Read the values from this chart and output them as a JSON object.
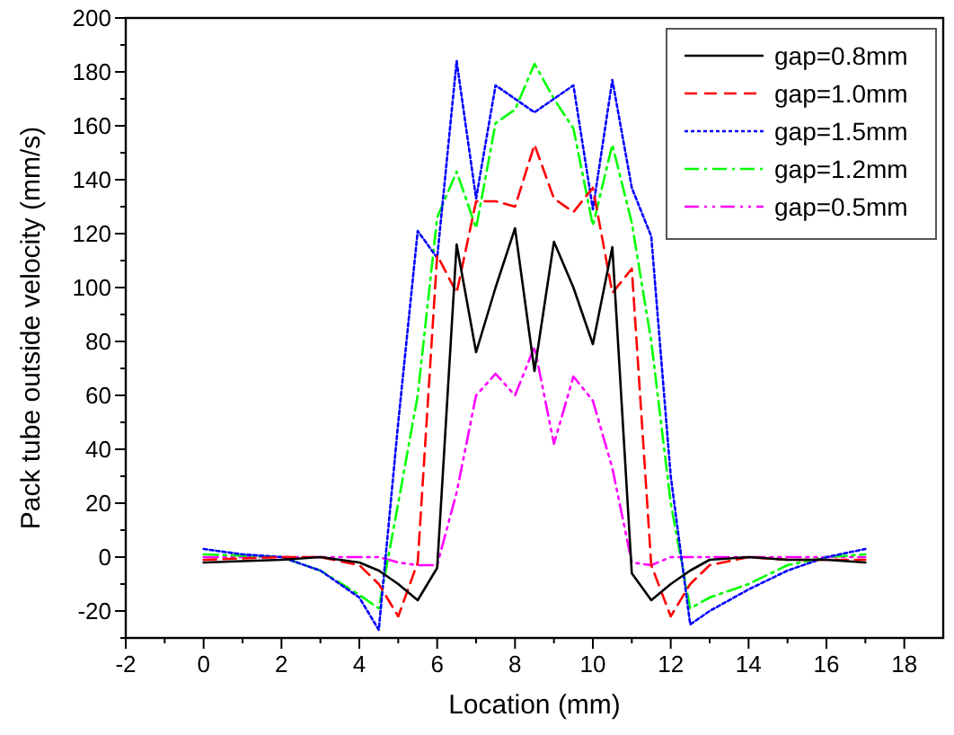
{
  "chart_data": {
    "type": "line",
    "xlabel": "Location (mm)",
    "ylabel": "Pack tube outside velocity (mm/s)",
    "xlim": [
      -2,
      19
    ],
    "ylim": [
      -30,
      200
    ],
    "xticks": [
      -2,
      {
        "value": -1,
        "label": null
      },
      0,
      {
        "value": 1,
        "label": null
      },
      2,
      {
        "value": 3,
        "label": null
      },
      4,
      {
        "value": 5,
        "label": null
      },
      6,
      {
        "value": 7,
        "label": null
      },
      8,
      {
        "value": 9,
        "label": null
      },
      10,
      {
        "value": 11,
        "label": null
      },
      12,
      {
        "value": 13,
        "label": null
      },
      14,
      {
        "value": 15,
        "label": null
      },
      16,
      {
        "value": 17,
        "label": null
      },
      18
    ],
    "yticks": [
      {
        "value": -30,
        "label": null
      },
      -20,
      {
        "value": -10,
        "label": null
      },
      0,
      {
        "value": 10,
        "label": null
      },
      20,
      {
        "value": 30,
        "label": null
      },
      40,
      {
        "value": 50,
        "label": null
      },
      60,
      {
        "value": 70,
        "label": null
      },
      80,
      {
        "value": 90,
        "label": null
      },
      100,
      {
        "value": 110,
        "label": null
      },
      120,
      {
        "value": 130,
        "label": null
      },
      140,
      {
        "value": 150,
        "label": null
      },
      160,
      {
        "value": 170,
        "label": null
      },
      180,
      {
        "value": 190,
        "label": null
      },
      200
    ],
    "x": [
      0,
      1,
      2,
      3,
      4,
      4.5,
      5,
      5.5,
      6,
      6.5,
      7,
      7.5,
      8,
      8.5,
      9,
      9.5,
      10,
      10.5,
      11,
      11.5,
      12,
      12.5,
      13,
      14,
      15,
      16,
      17
    ],
    "legend": "top right",
    "grid": false,
    "marker": "none",
    "series": [
      {
        "name": "gap=0.8mm",
        "color": "#000000",
        "line_style": "solid",
        "values": [
          -2,
          -1.5,
          -1,
          0,
          -2,
          -5,
          -10,
          -16,
          -4,
          116,
          76,
          100,
          122,
          69,
          117,
          100,
          79,
          115,
          -6,
          -16,
          -10,
          -5,
          -1,
          0,
          -1,
          -1,
          -2
        ]
      },
      {
        "name": "gap=1.0mm",
        "color": "#ff0000",
        "line_style": "dashed",
        "values": [
          -1,
          -0.5,
          0,
          0,
          -3,
          -10,
          -22,
          -2,
          112,
          98,
          132,
          132,
          130,
          153,
          133,
          128,
          137,
          98,
          107,
          -3,
          -22,
          -10,
          -3,
          0,
          -1,
          -1,
          -1
        ]
      },
      {
        "name": "gap=1.5mm",
        "color": "#0000ff",
        "line_style": "dotted",
        "values": [
          3,
          1,
          0,
          -5,
          -15,
          -27,
          50,
          121,
          111,
          184,
          133,
          175,
          170,
          165,
          170,
          175,
          129,
          177,
          137,
          119,
          30,
          -25,
          -20,
          -12,
          -5,
          0,
          3
        ]
      },
      {
        "name": "gap=1.2mm",
        "color": "#00ff00",
        "line_style": "dashdot",
        "values": [
          1,
          0.5,
          0,
          -5,
          -14,
          -19,
          20,
          60,
          126,
          143,
          122,
          161,
          166,
          183,
          170,
          159,
          123,
          153,
          124,
          80,
          20,
          -19,
          -15,
          -10,
          -3,
          0,
          1
        ]
      },
      {
        "name": "gap=0.5mm",
        "color": "#ff00ff",
        "line_style": "dashdotdot",
        "values": [
          0,
          0,
          0,
          0,
          0,
          0,
          -2,
          -3,
          -3,
          24,
          60,
          68,
          60,
          78,
          42,
          67,
          58,
          33,
          -2,
          -3,
          0,
          0,
          0,
          0,
          0,
          0,
          0
        ]
      }
    ]
  }
}
